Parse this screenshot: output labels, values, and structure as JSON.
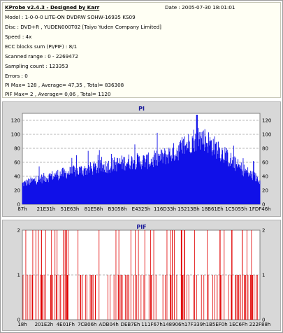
{
  "header": {
    "title": "KProbe v2.4.3 - Designed by Karr",
    "date": "Date : 2005-07-30 18:01:01"
  },
  "info_lines": [
    "Model : 1-0-0-0 LITE-ON DVDRW SOHW-16935 KS09",
    "Disc : DVD+R , YUDEN000T02 [Taiyo Yuden Company Limited]",
    "Speed : 4x",
    "ECC blocks sum (PI/PIF) : 8/1",
    "Scanned range : 0 - 2269472",
    "Sampling count : 123353",
    "Errors : 0",
    "PI Max= 128 , Average= 47,35 , Total= 836308",
    "PIF Max= 2 , Average= 0,06 , Total= 1120"
  ],
  "colors": {
    "pi_fill": "#1010e8",
    "pif_line": "#e00000",
    "plot_bg": "#ffffff",
    "panel_bg": "#d8d8d8"
  },
  "chart_data": [
    {
      "type": "bar",
      "title": "PI",
      "ylim": [
        0,
        130
      ],
      "yticks": [
        "0",
        "20",
        "40",
        "60",
        "80",
        "100",
        "120"
      ],
      "xticks": [
        "87h",
        "21E31h",
        "51E63h",
        "81E58h",
        "B3058h",
        "E4325h",
        "116D33h",
        "15213Bh",
        "18B61Eh",
        "1C5055h",
        "1FDF46h"
      ],
      "grid": "dashed horizontal",
      "profile_x": [
        0,
        0.06,
        0.15,
        0.25,
        0.35,
        0.45,
        0.55,
        0.65,
        0.72,
        0.76,
        0.82,
        0.9,
        0.96,
        1.0
      ],
      "profile_y": [
        30,
        36,
        44,
        50,
        56,
        63,
        64,
        78,
        95,
        98,
        82,
        58,
        44,
        36
      ],
      "max": 128
    },
    {
      "type": "bar",
      "title": "PIF",
      "ylim": [
        0,
        2
      ],
      "yticks": [
        "0",
        "1",
        "2"
      ],
      "xticks": [
        "18h",
        "201E2h",
        "4E01Fh",
        "7CB06h",
        "ADB04h",
        "DEB7Eh",
        "111F67h",
        "148906h",
        "17F339h",
        "1B5EF0h",
        "1EC6Fh",
        "222F88h"
      ],
      "grid": "dashed horizontal",
      "max": 2
    }
  ]
}
